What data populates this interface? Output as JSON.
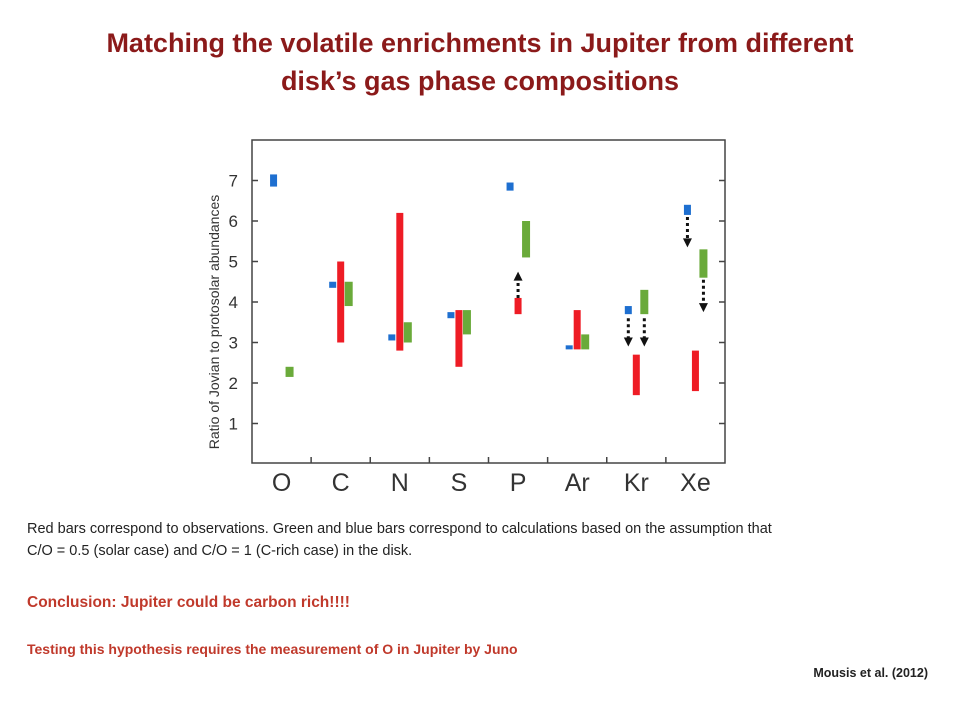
{
  "slide": {
    "title_line1": "Matching the volatile enrichments in Jupiter from different",
    "title_line2": "disk’s gas phase compositions",
    "caption_line1": "Red bars correspond to observations. Green and blue bars correspond to calculations based on the assumption that",
    "caption_line2": "C/O = 0.5 (solar case) and C/O = 1 (C-rich case) in the disk.",
    "conclusion": "Conclusion:  Jupiter could be carbon rich!!!!",
    "testing": "Testing this hypothesis requires the measurement of O in Jupiter by Juno",
    "reference": "Mousis et al. (2012)"
  },
  "chart_data": {
    "type": "bar",
    "ylabel": "Ratio of Jovian to protosolar abundances",
    "xlabel": "",
    "ylim": [
      0,
      7.7
    ],
    "yticks": [
      1,
      2,
      3,
      4,
      5,
      6,
      7
    ],
    "categories": [
      "O",
      "C",
      "N",
      "S",
      "P",
      "Ar",
      "Kr",
      "Xe"
    ],
    "colors": {
      "observations": "#ee1c25",
      "solar_case": "#6aaa3a",
      "c_rich_case": "#1e6fd0",
      "arrow": "#111111"
    },
    "series": [
      {
        "key": "c_rich_case",
        "ranges": [
          [
            6.85,
            7.15
          ],
          [
            4.35,
            4.5
          ],
          [
            3.05,
            3.2
          ],
          [
            3.6,
            3.75
          ],
          [
            6.75,
            6.95
          ],
          [
            2.83,
            2.93
          ],
          [
            3.7,
            3.9
          ],
          [
            6.15,
            6.4
          ]
        ]
      },
      {
        "key": "solar_case",
        "ranges": [
          [
            2.15,
            2.4
          ],
          [
            3.9,
            4.5
          ],
          [
            3.0,
            3.5
          ],
          [
            3.2,
            3.8
          ],
          [
            5.1,
            6.0
          ],
          [
            2.83,
            3.2
          ],
          [
            3.7,
            4.3
          ],
          [
            4.6,
            5.3
          ]
        ]
      },
      {
        "key": "observations",
        "ranges": [
          null,
          [
            3.0,
            5.0
          ],
          [
            2.8,
            6.2
          ],
          [
            2.4,
            3.8
          ],
          [
            3.7,
            4.1
          ],
          [
            2.83,
            3.8
          ],
          [
            1.7,
            2.7
          ],
          [
            1.8,
            2.8
          ]
        ]
      }
    ],
    "arrows": [
      {
        "category": "P",
        "slot": "observations",
        "from": 4.1,
        "to": 4.75
      },
      {
        "category": "Kr",
        "slot": "c_rich_case",
        "from": 3.6,
        "to": 2.9
      },
      {
        "category": "Kr",
        "slot": "solar_case",
        "from": 3.6,
        "to": 2.9
      },
      {
        "category": "Xe",
        "slot": "c_rich_case",
        "from": 6.1,
        "to": 5.35
      },
      {
        "category": "Xe",
        "slot": "solar_case",
        "from": 4.55,
        "to": 3.75
      }
    ]
  }
}
